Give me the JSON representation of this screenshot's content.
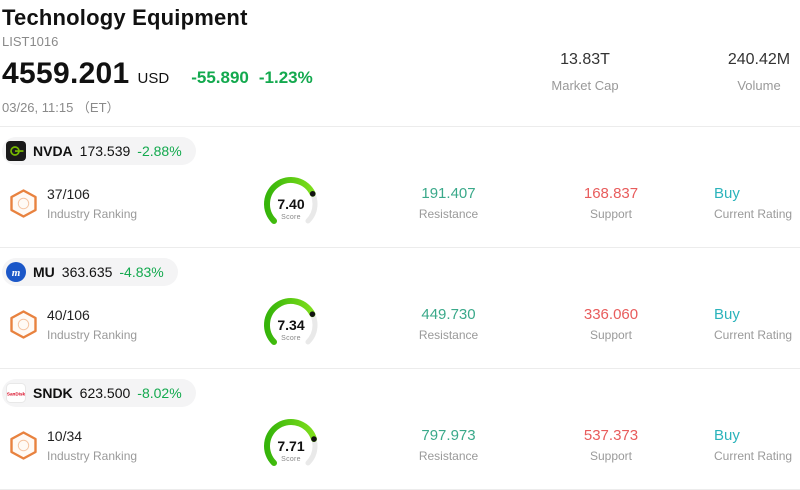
{
  "header": {
    "title": "Technology Equipment",
    "list_id": "LIST1016",
    "price": "4559.201",
    "currency": "USD",
    "change": "-55.890",
    "change_pct": "-1.23%",
    "timestamp": "03/26, 11:15 （ET）",
    "market_cap": {
      "value": "13.83T",
      "label": "Market Cap"
    },
    "volume": {
      "value": "240.42M",
      "label": "Volume"
    }
  },
  "labels": {
    "ranking": "Industry Ranking",
    "score": "Score",
    "resistance": "Resistance",
    "support": "Support",
    "rating": "Current Rating"
  },
  "stocks": [
    {
      "ticker": "NVDA",
      "price": "173.539",
      "change_pct": "-2.88%",
      "ranking": "37/106",
      "score": 7.4,
      "score_display": "7.40",
      "resistance": "191.407",
      "support": "168.837",
      "rating": "Buy",
      "logo_color": "#76b900",
      "logo_text": ""
    },
    {
      "ticker": "MU",
      "price": "363.635",
      "change_pct": "-4.83%",
      "ranking": "40/106",
      "score": 7.34,
      "score_display": "7.34",
      "resistance": "449.730",
      "support": "336.060",
      "rating": "Buy",
      "logo_color": "#1b57c8",
      "logo_text": "m"
    },
    {
      "ticker": "SNDK",
      "price": "623.500",
      "change_pct": "-8.02%",
      "ranking": "10/34",
      "score": 7.71,
      "score_display": "7.71",
      "resistance": "797.973",
      "support": "537.373",
      "rating": "Buy",
      "logo_color": "#d6001c",
      "logo_text": "SanDisk"
    }
  ],
  "colors": {
    "down_green": "#13a94e",
    "resistance_teal": "#3aa98a",
    "support_red": "#e85c5c",
    "rating_teal": "#2bb3bb",
    "badge_orange": "#e8823f",
    "gauge_green_start": "#35b40a",
    "gauge_green_end": "#7ede1c"
  }
}
